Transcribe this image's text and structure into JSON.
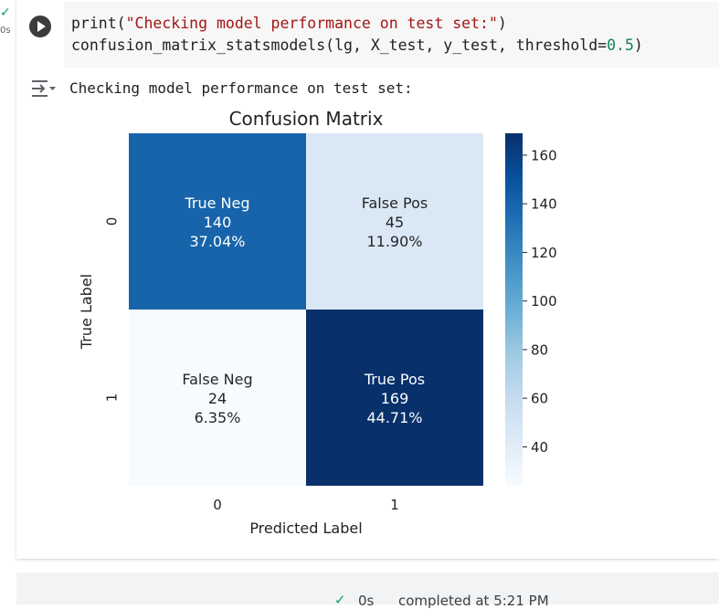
{
  "cell": {
    "exec_time": "0s",
    "code": {
      "line1_fn": "print(",
      "line1_str": "\"Checking model performance on test set:\"",
      "line1_end": ")",
      "line2_pre": "confusion_matrix_statsmodels(lg, X_test, y_test, threshold=",
      "line2_num": "0.5",
      "line2_end": ")"
    },
    "output_text": "Checking model performance on test set:"
  },
  "chart_data": {
    "type": "heatmap",
    "title": "Confusion Matrix",
    "xlabel": "Predicted Label",
    "ylabel": "True Label",
    "x_ticks": [
      "0",
      "1"
    ],
    "y_ticks": [
      "0",
      "1"
    ],
    "matrix": [
      [
        140,
        45
      ],
      [
        24,
        169
      ]
    ],
    "cell_labels": [
      [
        [
          "True Neg",
          "140",
          "37.04%"
        ],
        [
          "False Pos",
          "45",
          "11.90%"
        ]
      ],
      [
        [
          "False Neg",
          "24",
          "6.35%"
        ],
        [
          "True Pos",
          "169",
          "44.71%"
        ]
      ]
    ],
    "colormap": "Blues",
    "colorbar_range": [
      24,
      169
    ],
    "colorbar_ticks": [
      "40",
      "60",
      "80",
      "100",
      "120",
      "140",
      "160"
    ]
  },
  "status": {
    "time": "0s",
    "text": "completed at 5:21 PM"
  },
  "colors": {
    "accent_green": "#0f9d58",
    "string": "#a31515",
    "number": "#098658"
  }
}
